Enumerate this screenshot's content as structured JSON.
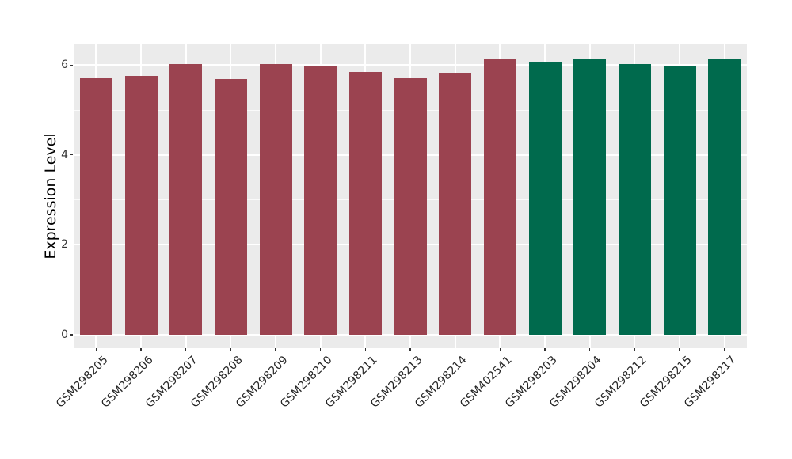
{
  "figure": {
    "background": "#ffffff",
    "panel_background": "#EBEBEB",
    "grid_color": "#ffffff",
    "axis_text_color": "#333333"
  },
  "chart_data": {
    "type": "bar",
    "title": "",
    "xlabel": "",
    "ylabel": "Expression Level",
    "ylim": [
      -0.3,
      6.46
    ],
    "y_ticks": [
      0,
      2,
      4,
      6
    ],
    "y_minor_ticks": [
      1,
      3,
      5
    ],
    "grid": true,
    "legend_position": "none",
    "categories": [
      "GSM298205",
      "GSM298206",
      "GSM298207",
      "GSM298208",
      "GSM298209",
      "GSM298210",
      "GSM298211",
      "GSM298213",
      "GSM298214",
      "GSM402541",
      "GSM298203",
      "GSM298204",
      "GSM298212",
      "GSM298215",
      "GSM298217"
    ],
    "values": [
      5.72,
      5.75,
      6.02,
      5.69,
      6.02,
      5.98,
      5.84,
      5.73,
      5.82,
      6.13,
      6.07,
      6.15,
      6.03,
      5.98,
      6.12
    ],
    "groups": [
      "group1",
      "group1",
      "group1",
      "group1",
      "group1",
      "group1",
      "group1",
      "group1",
      "group1",
      "group1",
      "group2",
      "group2",
      "group2",
      "group2",
      "group2"
    ],
    "group_colors": {
      "group1": "#9B4350",
      "group2": "#006A4D"
    }
  }
}
